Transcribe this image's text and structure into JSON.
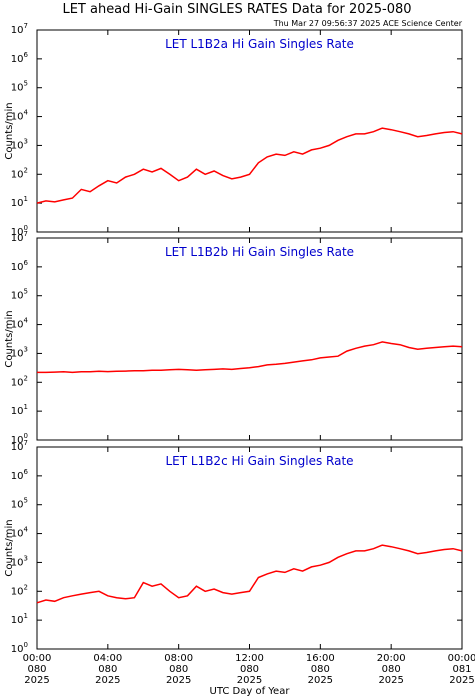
{
  "header": {
    "title": "LET ahead Hi-Gain SINGLES RATES Data for 2025-080",
    "subtitle": "Thu Mar 27 09:56:37 2025 ACE Science Center"
  },
  "chart_data": [
    {
      "type": "line",
      "title": "LET L1B2a Hi Gain Singles Rate",
      "ylabel": "Counts/min",
      "log": true,
      "ylim": [
        1,
        10000000
      ],
      "yticks": [
        {
          "value": 1,
          "label": [
            "10",
            "0"
          ]
        },
        {
          "value": 10,
          "label": [
            "10",
            "1"
          ]
        },
        {
          "value": 100,
          "label": [
            "10",
            "2"
          ]
        },
        {
          "value": 1000,
          "label": [
            "10",
            "3"
          ]
        },
        {
          "value": 10000,
          "label": [
            "10",
            "4"
          ]
        },
        {
          "value": 100000,
          "label": [
            "10",
            "5"
          ]
        },
        {
          "value": 1000000,
          "label": [
            "10",
            "6"
          ]
        },
        {
          "value": 10000000,
          "label": [
            "10",
            "7"
          ]
        }
      ],
      "xlim": [
        0,
        24
      ],
      "x": [
        0,
        0.5,
        1,
        1.5,
        2,
        2.5,
        3,
        3.5,
        4,
        4.5,
        5,
        5.5,
        6,
        6.5,
        7,
        7.5,
        8,
        8.5,
        9,
        9.5,
        10,
        10.5,
        11,
        11.5,
        12,
        12.5,
        13,
        13.5,
        14,
        14.5,
        15,
        15.5,
        16,
        16.5,
        17,
        17.5,
        18,
        18.5,
        19,
        19.5,
        20,
        20.5,
        21,
        21.5,
        22,
        22.5,
        23,
        23.5,
        24
      ],
      "series": [
        {
          "color": "#ff0000",
          "values": [
            10,
            12,
            11,
            13,
            15,
            30,
            25,
            40,
            60,
            50,
            80,
            100,
            150,
            120,
            160,
            100,
            60,
            80,
            150,
            100,
            130,
            90,
            70,
            80,
            100,
            250,
            400,
            500,
            450,
            600,
            500,
            700,
            800,
            1000,
            1500,
            2000,
            2500,
            2500,
            3000,
            4000,
            3500,
            3000,
            2500,
            2000,
            2200,
            2500,
            2800,
            3000,
            2500
          ]
        }
      ]
    },
    {
      "type": "line",
      "title": "LET L1B2b Hi Gain Singles Rate",
      "ylabel": "Counts/min",
      "log": true,
      "ylim": [
        1,
        10000000
      ],
      "yticks": [
        {
          "value": 1,
          "label": [
            "10",
            "0"
          ]
        },
        {
          "value": 10,
          "label": [
            "10",
            "1"
          ]
        },
        {
          "value": 100,
          "label": [
            "10",
            "2"
          ]
        },
        {
          "value": 1000,
          "label": [
            "10",
            "3"
          ]
        },
        {
          "value": 10000,
          "label": [
            "10",
            "4"
          ]
        },
        {
          "value": 100000,
          "label": [
            "10",
            "5"
          ]
        },
        {
          "value": 1000000,
          "label": [
            "10",
            "6"
          ]
        },
        {
          "value": 10000000,
          "label": [
            "10",
            "7"
          ]
        }
      ],
      "xlim": [
        0,
        24
      ],
      "x": [
        0,
        0.5,
        1,
        1.5,
        2,
        2.5,
        3,
        3.5,
        4,
        4.5,
        5,
        5.5,
        6,
        6.5,
        7,
        7.5,
        8,
        8.5,
        9,
        9.5,
        10,
        10.5,
        11,
        11.5,
        12,
        12.5,
        13,
        13.5,
        14,
        14.5,
        15,
        15.5,
        16,
        16.5,
        17,
        17.5,
        18,
        18.5,
        19,
        19.5,
        20,
        20.5,
        21,
        21.5,
        22,
        22.5,
        23,
        23.5,
        24
      ],
      "series": [
        {
          "color": "#ff0000",
          "values": [
            220,
            220,
            225,
            230,
            220,
            230,
            230,
            240,
            235,
            240,
            245,
            250,
            250,
            260,
            260,
            270,
            280,
            270,
            260,
            270,
            280,
            290,
            280,
            300,
            320,
            350,
            400,
            420,
            450,
            500,
            550,
            600,
            700,
            750,
            800,
            1200,
            1500,
            1800,
            2000,
            2500,
            2200,
            2000,
            1600,
            1400,
            1500,
            1600,
            1700,
            1800,
            1700
          ]
        }
      ]
    },
    {
      "type": "line",
      "title": "LET L1B2c Hi Gain Singles Rate",
      "ylabel": "Counts/min",
      "xlabel": "UTC Day of Year",
      "log": true,
      "ylim": [
        1,
        10000000
      ],
      "yticks": [
        {
          "value": 1,
          "label": [
            "10",
            "0"
          ]
        },
        {
          "value": 10,
          "label": [
            "10",
            "1"
          ]
        },
        {
          "value": 100,
          "label": [
            "10",
            "2"
          ]
        },
        {
          "value": 1000,
          "label": [
            "10",
            "3"
          ]
        },
        {
          "value": 10000,
          "label": [
            "10",
            "4"
          ]
        },
        {
          "value": 100000,
          "label": [
            "10",
            "5"
          ]
        },
        {
          "value": 1000000,
          "label": [
            "10",
            "6"
          ]
        },
        {
          "value": 10000000,
          "label": [
            "10",
            "7"
          ]
        }
      ],
      "xlim": [
        0,
        24
      ],
      "xticks": [
        {
          "value": 0,
          "label": [
            "00:00",
            "080",
            "2025"
          ]
        },
        {
          "value": 4,
          "label": [
            "04:00",
            "080",
            "2025"
          ]
        },
        {
          "value": 8,
          "label": [
            "08:00",
            "080",
            "2025"
          ]
        },
        {
          "value": 12,
          "label": [
            "12:00",
            "080",
            "2025"
          ]
        },
        {
          "value": 16,
          "label": [
            "16:00",
            "080",
            "2025"
          ]
        },
        {
          "value": 20,
          "label": [
            "20:00",
            "080",
            "2025"
          ]
        },
        {
          "value": 24,
          "label": [
            "00:00",
            "081",
            "2025"
          ]
        }
      ],
      "x": [
        0,
        0.5,
        1,
        1.5,
        2,
        2.5,
        3,
        3.5,
        4,
        4.5,
        5,
        5.5,
        6,
        6.5,
        7,
        7.5,
        8,
        8.5,
        9,
        9.5,
        10,
        10.5,
        11,
        11.5,
        12,
        12.5,
        13,
        13.5,
        14,
        14.5,
        15,
        15.5,
        16,
        16.5,
        17,
        17.5,
        18,
        18.5,
        19,
        19.5,
        20,
        20.5,
        21,
        21.5,
        22,
        22.5,
        23,
        23.5,
        24
      ],
      "series": [
        {
          "color": "#ff0000",
          "values": [
            40,
            50,
            45,
            60,
            70,
            80,
            90,
            100,
            70,
            60,
            55,
            60,
            200,
            150,
            180,
            100,
            60,
            70,
            150,
            100,
            120,
            90,
            80,
            90,
            100,
            300,
            400,
            500,
            450,
            600,
            500,
            700,
            800,
            1000,
            1500,
            2000,
            2500,
            2500,
            3000,
            4000,
            3500,
            3000,
            2500,
            2000,
            2200,
            2500,
            2800,
            3000,
            2500
          ]
        }
      ]
    }
  ]
}
